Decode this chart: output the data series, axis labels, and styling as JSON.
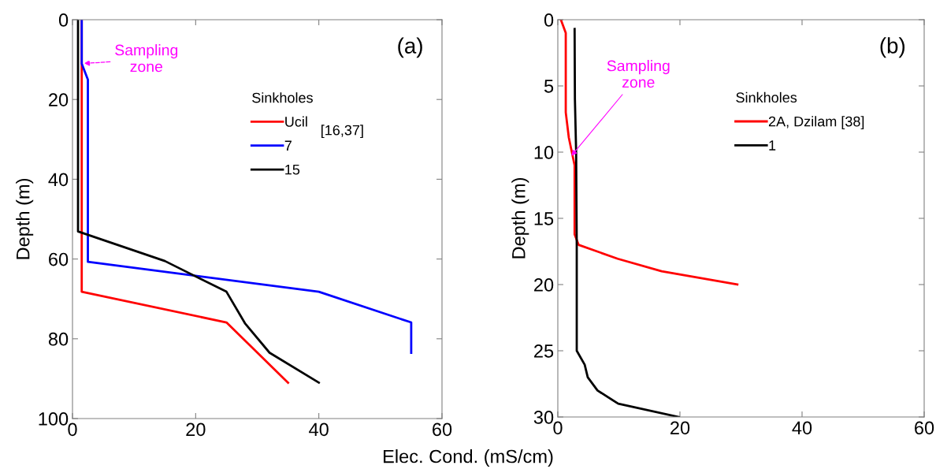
{
  "chart_data": [
    {
      "type": "line",
      "xlabel": "Elec. Cond. (mS/cm)",
      "ylabel": "Depth (m)",
      "legend_title": "Sinkholes",
      "legend": "top",
      "xlim": [
        0,
        60
      ],
      "xticks": [
        0,
        20,
        40,
        60
      ],
      "ylim": [
        100,
        0
      ],
      "yticks": [
        0,
        20,
        40,
        60,
        80,
        100
      ],
      "grid": false,
      "line_style": "solid",
      "series": [
        {
          "name": "Ucil",
          "color": "#ff0000",
          "x": [
            1.5,
            1.5,
            25,
            35
          ],
          "values": [
            0,
            68.2,
            75.9,
            91
          ]
        },
        {
          "name": "7",
          "color": "#0000ff",
          "x": [
            1.5,
            1.5,
            2.5,
            2.5,
            40,
            55,
            55
          ],
          "values": [
            0,
            11,
            15,
            60.7,
            68.2,
            75.9,
            83.5
          ]
        },
        {
          "name": "15",
          "color": "#000000",
          "x": [
            0.9,
            0.9,
            15,
            25,
            28,
            32,
            40
          ],
          "values": [
            0,
            53.1,
            60.5,
            68.2,
            76.1,
            83.5,
            91
          ]
        }
      ],
      "annotations": [
        {
          "text": "Sampling\nzone",
          "x": 1.5,
          "y": 11
        },
        "(a)",
        "[16,37]"
      ]
    },
    {
      "type": "line",
      "ylabel": "Depth (m)",
      "legend_title": "Sinkholes",
      "legend": "top",
      "xlim": [
        0,
        60
      ],
      "xticks": [
        0,
        20,
        40,
        60
      ],
      "ylim": [
        30,
        0
      ],
      "yticks": [
        0,
        5,
        10,
        15,
        20,
        25,
        30
      ],
      "grid": false,
      "line_style": "solid",
      "series": [
        {
          "name": "2A, Dzilam [38]",
          "color": "#ff0000",
          "x": [
            0.5,
            1.3,
            1.3,
            1.8,
            2.75,
            2.75,
            3.4,
            9.8,
            17,
            29.4
          ],
          "values": [
            0,
            1,
            7,
            8.9,
            11,
            16.2,
            17,
            18.05,
            19,
            20
          ]
        },
        {
          "name": "1",
          "color": "#000000",
          "x": [
            2.75,
            2.8,
            3.0,
            3.1,
            3.1,
            4.4,
            4.9,
            6.5,
            9.9,
            19.8
          ],
          "values": [
            0.7,
            6,
            10,
            17,
            25,
            26.05,
            27,
            28,
            29,
            30
          ]
        }
      ],
      "annotations": [
        {
          "text": "Sampling\nzone",
          "x": 2,
          "y": 10.4
        },
        "(b)"
      ]
    }
  ]
}
